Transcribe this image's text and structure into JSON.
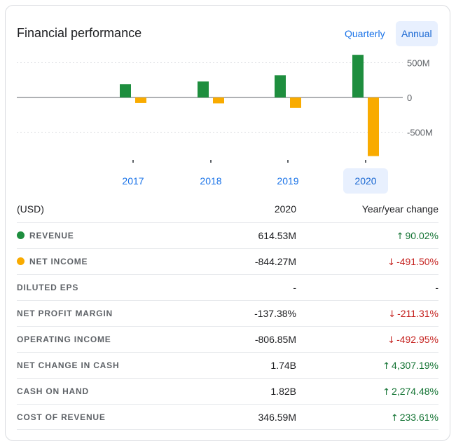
{
  "header": {
    "title": "Financial performance",
    "toggle_quarterly": "Quarterly",
    "toggle_annual": "Annual",
    "selected": "Annual"
  },
  "colors": {
    "revenue": "#1e8e3e",
    "net_income": "#f9ab00",
    "up": "#137333",
    "down": "#c5221f",
    "link": "#1a73e8"
  },
  "chart_data": {
    "type": "bar",
    "categories": [
      "2017",
      "2018",
      "2019",
      "2020"
    ],
    "series": [
      {
        "name": "Revenue",
        "values": [
          190,
          230,
          320,
          614.53
        ]
      },
      {
        "name": "Net income",
        "values": [
          -80,
          -85,
          -150,
          -844.27
        ]
      }
    ],
    "y_ticks": [
      "500M",
      "0",
      "-500M"
    ],
    "y_tick_values": [
      500,
      0,
      -500
    ],
    "ylim": [
      -900,
      650
    ],
    "grid": true,
    "selected_category": "2020"
  },
  "table": {
    "header": {
      "label": "(USD)",
      "period": "2020",
      "change": "Year/year change"
    },
    "rows": [
      {
        "label": "REVENUE",
        "dot": "revenue",
        "value": "614.53M",
        "change": "90.02%",
        "dir": "up"
      },
      {
        "label": "NET INCOME",
        "dot": "net_income",
        "value": "-844.27M",
        "change": "-491.50%",
        "dir": "down"
      },
      {
        "label": "DILUTED EPS",
        "dot": "",
        "value": "-",
        "change": "-",
        "dir": ""
      },
      {
        "label": "NET PROFIT MARGIN",
        "dot": "",
        "value": "-137.38%",
        "change": "-211.31%",
        "dir": "down"
      },
      {
        "label": "OPERATING INCOME",
        "dot": "",
        "value": "-806.85M",
        "change": "-492.95%",
        "dir": "down"
      },
      {
        "label": "NET CHANGE IN CASH",
        "dot": "",
        "value": "1.74B",
        "change": "4,307.19%",
        "dir": "up"
      },
      {
        "label": "CASH ON HAND",
        "dot": "",
        "value": "1.82B",
        "change": "2,274.48%",
        "dir": "up"
      },
      {
        "label": "COST OF REVENUE",
        "dot": "",
        "value": "346.59M",
        "change": "233.61%",
        "dir": "up"
      }
    ]
  }
}
